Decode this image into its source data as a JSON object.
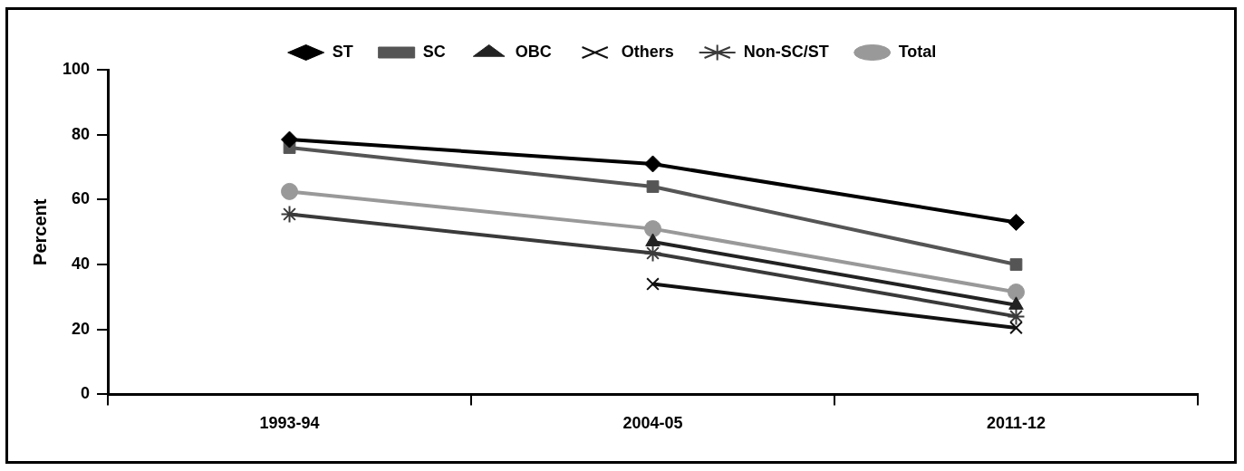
{
  "chart_data": {
    "type": "line",
    "ylabel": "Percent",
    "categories": [
      "1993-94",
      "2004-05",
      "2011-12"
    ],
    "series": [
      {
        "name": "ST",
        "color": "#000000",
        "marker": "diamond",
        "values": [
          78.5,
          71,
          53
        ]
      },
      {
        "name": "SC",
        "color": "#555555",
        "marker": "square",
        "values": [
          76,
          64,
          40
        ]
      },
      {
        "name": "OBC",
        "color": "#222222",
        "marker": "triangle",
        "values": [
          null,
          47,
          27.5
        ]
      },
      {
        "name": "Others",
        "color": "#111111",
        "marker": "cross",
        "values": [
          null,
          34,
          20.5
        ]
      },
      {
        "name": "Non-SC/ST",
        "color": "#3a3a3a",
        "marker": "cross",
        "values": [
          55.5,
          43.5,
          24
        ]
      },
      {
        "name": "Total",
        "color": "#999999",
        "marker": "circle",
        "values": [
          62.5,
          51,
          31.5
        ]
      }
    ],
    "ylim": [
      0,
      100
    ],
    "yticks": [
      0,
      20,
      40,
      60,
      80,
      100
    ],
    "grid": false,
    "legend": "top",
    "line_style": "solid"
  }
}
